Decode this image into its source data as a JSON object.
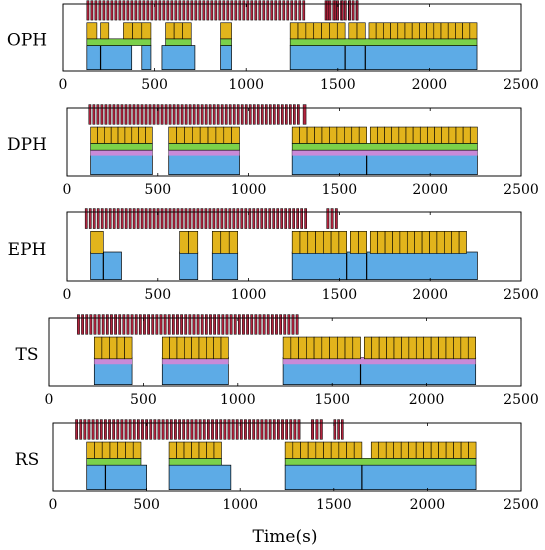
{
  "chart_data": {
    "type": "timeline",
    "xlabel": "Time(s)",
    "xlim": [
      0,
      2500
    ],
    "xticks": [
      0,
      500,
      1000,
      1500,
      2000,
      2500
    ],
    "colors": {
      "red": "#b2243e",
      "yellow": "#e2b41c",
      "green": "#7bd14a",
      "blue": "#5dabe6",
      "purple": "#c98ad8"
    },
    "panels": [
      {
        "name": "OPH",
        "red_burst_segments": [
          [
            130,
            1330
          ],
          [
            1430,
            1620
          ]
        ],
        "red_spikes": [
          1440,
          1480,
          1520,
          1560,
          1600
        ],
        "yellow_segments": [
          [
            130,
            185
          ],
          [
            205,
            250
          ],
          [
            330,
            480
          ],
          [
            560,
            700
          ],
          [
            860,
            920
          ],
          [
            1240,
            1540
          ],
          [
            1560,
            1650
          ],
          [
            1670,
            2260
          ]
        ],
        "yellow_cells": [
          {
            "start": 130,
            "end": 185,
            "count": 1
          },
          {
            "start": 205,
            "end": 250,
            "count": 1
          },
          {
            "start": 330,
            "end": 480,
            "count": 3
          },
          {
            "start": 560,
            "end": 700,
            "count": 3
          },
          {
            "start": 860,
            "end": 920,
            "count": 1
          },
          {
            "start": 1240,
            "end": 1540,
            "count": 7
          },
          {
            "start": 1560,
            "end": 1650,
            "count": 2
          },
          {
            "start": 1670,
            "end": 2260,
            "count": 15
          }
        ],
        "green_segments": [
          [
            130,
            480
          ],
          [
            560,
            700
          ],
          [
            860,
            920
          ],
          [
            1240,
            2260
          ]
        ],
        "purple_segments": [],
        "blue_segments": [
          [
            130,
            375
          ],
          [
            430,
            480
          ],
          [
            540,
            720
          ],
          [
            860,
            920
          ],
          [
            1240,
            2260
          ]
        ],
        "blue_dividers": [
          205,
          1540,
          1650
        ]
      },
      {
        "name": "DPH",
        "red_burst_segments": [
          [
            120,
            1290
          ],
          [
            1300,
            1330
          ]
        ],
        "red_spikes": [],
        "yellow_segments": [
          [
            130,
            470
          ],
          [
            560,
            950
          ],
          [
            1240,
            1650
          ],
          [
            1670,
            2260
          ]
        ],
        "yellow_cells": [
          {
            "start": 130,
            "end": 470,
            "count": 9
          },
          {
            "start": 560,
            "end": 950,
            "count": 9
          },
          {
            "start": 1240,
            "end": 1650,
            "count": 10
          },
          {
            "start": 1670,
            "end": 2260,
            "count": 15
          }
        ],
        "green_segments": [
          [
            130,
            470
          ],
          [
            560,
            950
          ],
          [
            1240,
            2260
          ]
        ],
        "purple_segments": [
          [
            130,
            470
          ],
          [
            560,
            950
          ],
          [
            1240,
            2260
          ]
        ],
        "blue_segments": [
          [
            130,
            470
          ],
          [
            560,
            950
          ],
          [
            1240,
            2260
          ]
        ],
        "blue_dividers": [
          1650
        ]
      },
      {
        "name": "EPH",
        "red_burst_segments": [
          [
            100,
            1330
          ],
          [
            1430,
            1500
          ]
        ],
        "red_spikes": [],
        "yellow_segments": [
          [
            130,
            200
          ],
          [
            620,
            720
          ],
          [
            800,
            940
          ],
          [
            1240,
            1540
          ],
          [
            1560,
            1650
          ],
          [
            1670,
            2200
          ]
        ],
        "yellow_cells": [
          {
            "start": 130,
            "end": 200,
            "count": 1
          },
          {
            "start": 620,
            "end": 720,
            "count": 2
          },
          {
            "start": 800,
            "end": 940,
            "count": 3
          },
          {
            "start": 1240,
            "end": 1540,
            "count": 7
          },
          {
            "start": 1560,
            "end": 1650,
            "count": 2
          },
          {
            "start": 1670,
            "end": 2200,
            "count": 13
          }
        ],
        "green_segments": [],
        "purple_segments": [],
        "blue_segments": [
          [
            130,
            300
          ],
          [
            620,
            720
          ],
          [
            800,
            940
          ],
          [
            1240,
            2260
          ]
        ],
        "blue_dividers": [
          200,
          1540,
          1650
        ]
      },
      {
        "name": "TS",
        "red_burst_segments": [
          [
            150,
            1330
          ]
        ],
        "red_spikes": [],
        "yellow_segments": [
          [
            240,
            440
          ],
          [
            600,
            950
          ],
          [
            1240,
            1650
          ],
          [
            1670,
            2260
          ]
        ],
        "yellow_cells": [
          {
            "start": 240,
            "end": 440,
            "count": 5
          },
          {
            "start": 600,
            "end": 950,
            "count": 9
          },
          {
            "start": 1240,
            "end": 1650,
            "count": 10
          },
          {
            "start": 1670,
            "end": 2260,
            "count": 15
          }
        ],
        "green_segments": [],
        "purple_segments": [
          [
            240,
            440
          ],
          [
            600,
            950
          ],
          [
            1240,
            2260
          ]
        ],
        "blue_segments": [
          [
            240,
            440
          ],
          [
            600,
            950
          ],
          [
            1240,
            2260
          ]
        ],
        "blue_dividers": [
          1650
        ]
      },
      {
        "name": "RS",
        "red_burst_segments": [
          [
            120,
            1330
          ],
          [
            1380,
            1450
          ],
          [
            1500,
            1560
          ]
        ],
        "red_spikes": [],
        "yellow_segments": [
          [
            180,
            470
          ],
          [
            620,
            900
          ],
          [
            1240,
            1650
          ],
          [
            1700,
            2260
          ]
        ],
        "yellow_cells": [
          {
            "start": 180,
            "end": 470,
            "count": 7
          },
          {
            "start": 620,
            "end": 900,
            "count": 7
          },
          {
            "start": 1240,
            "end": 1650,
            "count": 10
          },
          {
            "start": 1700,
            "end": 2260,
            "count": 14
          }
        ],
        "green_segments": [
          [
            180,
            470
          ],
          [
            620,
            900
          ],
          [
            1240,
            2260
          ]
        ],
        "purple_segments": [],
        "blue_segments": [
          [
            180,
            500
          ],
          [
            620,
            950
          ],
          [
            1240,
            2260
          ]
        ],
        "blue_dividers": [
          280,
          1650
        ]
      }
    ]
  }
}
